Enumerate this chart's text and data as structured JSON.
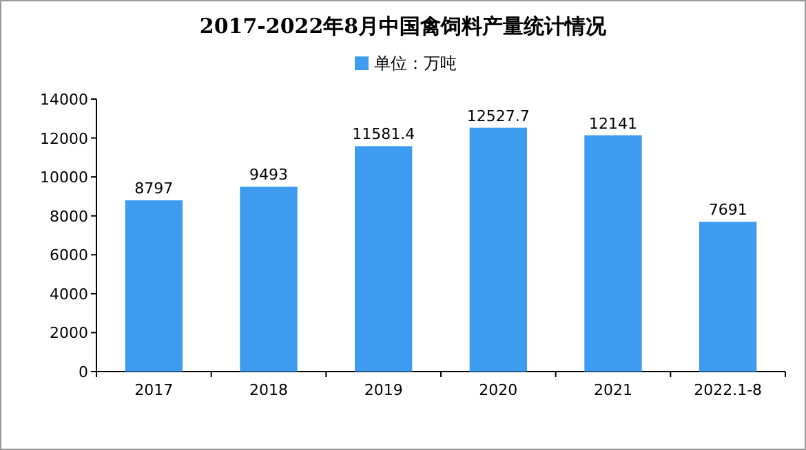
{
  "chart_data": {
    "type": "bar",
    "title": "2017-2022年8月中国禽饲料产量统计情况",
    "categories": [
      "2017",
      "2018",
      "2019",
      "2020",
      "2021",
      "2022.1-8"
    ],
    "series": [
      {
        "name": "单位：万吨",
        "color": "#3d9cf0",
        "values": [
          8797,
          9493,
          11581.4,
          12527.7,
          12141,
          7691
        ]
      }
    ],
    "ylim": [
      0,
      14000
    ],
    "yticks": [
      0,
      2000,
      4000,
      6000,
      8000,
      10000,
      12000,
      14000
    ],
    "legend": "top",
    "data_labels": true
  }
}
